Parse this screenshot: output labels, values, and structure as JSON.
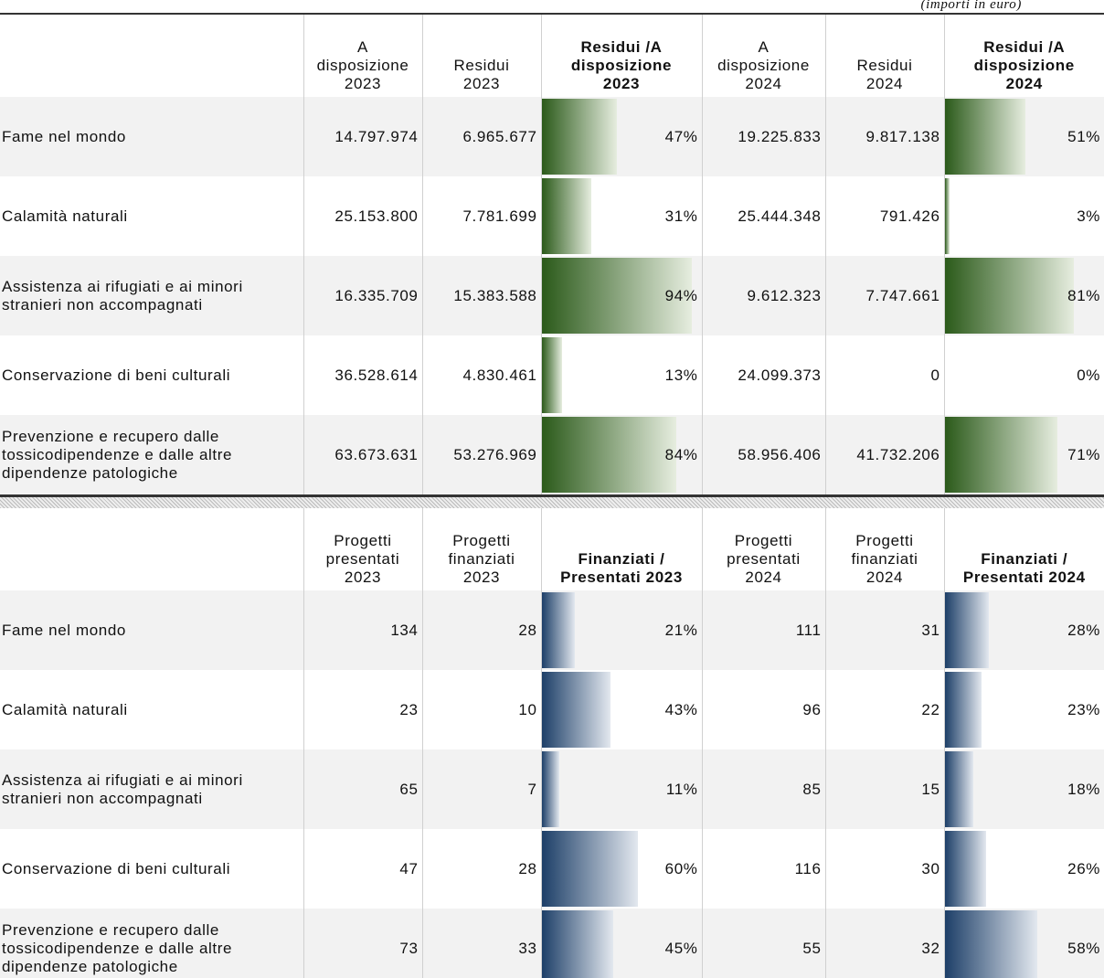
{
  "note": "(importi in euro)",
  "tables": [
    {
      "header": [
        "A\ndisposizione\n2023",
        "Residui\n2023",
        "Residui /A\ndisposizione\n2023",
        "A\ndisposizione\n2024",
        "Residui\n2024",
        "Residui /A\ndisposizione\n2024"
      ],
      "rows": [
        [
          "Fame nel mondo",
          "14.797.974",
          "6.965.677",
          {
            "value": 47,
            "label": "47%"
          },
          "19.225.833",
          "9.817.138",
          {
            "value": 51,
            "label": "51%"
          }
        ],
        [
          "Calamità naturali",
          "25.153.800",
          "7.781.699",
          {
            "value": 31,
            "label": "31%"
          },
          "25.444.348",
          "791.426",
          {
            "value": 3,
            "label": "3%"
          }
        ],
        [
          "Assistenza ai rifugiati e ai minori\nstranieri non accompagnati",
          "16.335.709",
          "15.383.588",
          {
            "value": 94,
            "label": "94%"
          },
          "9.612.323",
          "7.747.661",
          {
            "value": 81,
            "label": "81%"
          }
        ],
        [
          "Conservazione di beni culturali",
          "36.528.614",
          "4.830.461",
          {
            "value": 13,
            "label": "13%"
          },
          "24.099.373",
          "0",
          {
            "value": 0,
            "label": "0%"
          }
        ],
        [
          "Prevenzione e recupero dalle\ntossicodipendenze e dalle altre\ndipendenze patologiche",
          "63.673.631",
          "53.276.969",
          {
            "value": 84,
            "label": "84%"
          },
          "58.956.406",
          "41.732.206",
          {
            "value": 71,
            "label": "71%"
          }
        ]
      ]
    },
    {
      "header": [
        "Progetti\npresentati\n2023",
        "Progetti\nfinanziati\n2023",
        "Finanziati /\nPresentati 2023",
        "Progetti\npresentati\n2024",
        "Progetti\nfinanziati\n2024",
        "Finanziati /\nPresentati 2024"
      ],
      "rows": [
        [
          "Fame nel mondo",
          "134",
          "28",
          {
            "value": 21,
            "label": "21%"
          },
          "111",
          "31",
          {
            "value": 28,
            "label": "28%"
          }
        ],
        [
          "Calamità naturali",
          "23",
          "10",
          {
            "value": 43,
            "label": "43%"
          },
          "96",
          "22",
          {
            "value": 23,
            "label": "23%"
          }
        ],
        [
          "Assistenza ai rifugiati e ai minori\nstranieri non accompagnati",
          "65",
          "7",
          {
            "value": 11,
            "label": "11%"
          },
          "85",
          "15",
          {
            "value": 18,
            "label": "18%"
          }
        ],
        [
          "Conservazione di beni culturali",
          "47",
          "28",
          {
            "value": 60,
            "label": "60%"
          },
          "116",
          "30",
          {
            "value": 26,
            "label": "26%"
          }
        ],
        [
          "Prevenzione e recupero dalle\ntossicodipendenze e dalle altre\ndipendenze patologiche",
          "73",
          "33",
          {
            "value": 45,
            "label": "45%"
          },
          "55",
          "32",
          {
            "value": 58,
            "label": "58%"
          }
        ]
      ]
    }
  ]
}
